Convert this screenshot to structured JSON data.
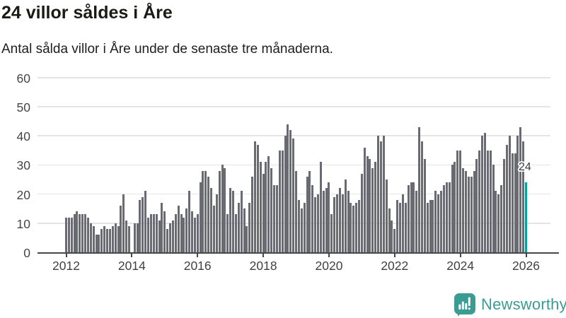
{
  "header": {
    "title": "24 villor såldes i Åre",
    "subtitle": "Antal sålda villor i Åre under de senaste tre månaderna."
  },
  "chart_data": {
    "type": "bar",
    "title": "24 villor såldes i Åre",
    "subtitle": "Antal sålda villor i Åre under de senaste tre månaderna.",
    "xlabel": "",
    "ylabel": "",
    "ylim": [
      0,
      60
    ],
    "y_ticks": [
      0,
      10,
      20,
      30,
      40,
      50,
      60
    ],
    "x_tick_labels": [
      "2012",
      "2014",
      "2016",
      "2018",
      "2020",
      "2022",
      "2024",
      "2026"
    ],
    "grid": "horizontal",
    "legend": "none",
    "values": [
      12,
      12,
      12,
      13,
      14,
      13,
      13,
      13,
      12,
      10,
      9,
      6,
      6,
      8,
      9,
      8,
      8,
      9,
      10,
      9,
      16,
      20,
      11,
      9,
      0,
      10,
      10,
      18,
      19,
      21,
      12,
      13,
      13,
      13,
      11,
      17,
      14,
      8,
      10,
      11,
      13,
      16,
      13,
      12,
      15,
      21,
      14,
      12,
      13,
      24,
      28,
      28,
      26,
      22,
      16,
      20,
      28,
      30,
      29,
      13,
      22,
      21,
      13,
      17,
      21,
      15,
      9,
      17,
      26,
      38,
      37,
      31,
      27,
      31,
      33,
      29,
      23,
      23,
      35,
      35,
      40,
      44,
      42,
      39,
      28,
      18,
      15,
      17,
      26,
      28,
      23,
      19,
      20,
      31,
      21,
      22,
      24,
      13,
      19,
      20,
      22,
      20,
      25,
      21,
      17,
      16,
      17,
      18,
      27,
      36,
      33,
      32,
      29,
      31,
      40,
      38,
      40,
      25,
      15,
      11,
      8,
      18,
      17,
      20,
      17,
      23,
      24,
      24,
      21,
      43,
      38,
      32,
      17,
      18,
      18,
      21,
      20,
      21,
      23,
      24,
      24,
      30,
      31,
      35,
      35,
      29,
      28,
      26,
      26,
      28,
      32,
      35,
      40,
      41,
      35,
      35,
      30,
      21,
      20,
      23,
      32,
      37,
      40,
      34,
      34,
      40,
      43,
      38,
      24
    ],
    "highlight": {
      "index": 168,
      "value": 24,
      "label": "24"
    },
    "colors": {
      "bar": "#6a6a73",
      "highlight": "#00a29b",
      "grid": "#e4e4e4",
      "axis": "#47474b"
    }
  },
  "footer": {
    "brand": "Newsworthy",
    "brand_color": "#3b9c94",
    "logo_icon": "bar-chart-speech-bubble-icon"
  }
}
